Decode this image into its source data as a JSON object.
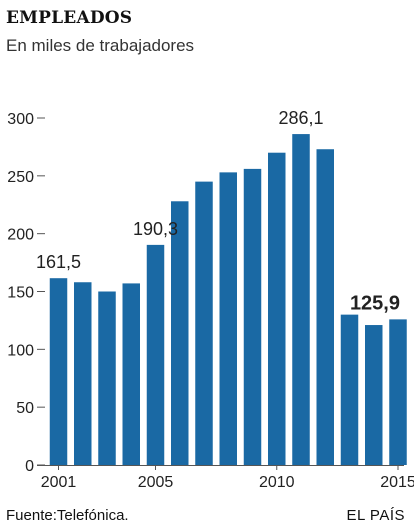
{
  "chart_data": {
    "type": "bar",
    "title": "EMPLEADOS",
    "subtitle": "En miles de trabajadores",
    "categories": [
      "2001",
      "2002",
      "2003",
      "2004",
      "2005",
      "2006",
      "2007",
      "2008",
      "2009",
      "2010",
      "2011",
      "2012",
      "2013",
      "2014",
      "2015"
    ],
    "values": [
      161.5,
      158,
      150,
      157,
      190.3,
      228,
      245,
      253,
      256,
      270,
      286.1,
      273,
      130,
      121,
      125.9
    ],
    "x_tick_labels": [
      {
        "index": 0,
        "text": "2001"
      },
      {
        "index": 4,
        "text": "2005"
      },
      {
        "index": 9,
        "text": "2010"
      },
      {
        "index": 14,
        "text": "2015"
      }
    ],
    "y_ticks": [
      {
        "value": 0,
        "text": "0"
      },
      {
        "value": 50,
        "text": "50"
      },
      {
        "value": 100,
        "text": "100"
      },
      {
        "value": 150,
        "text": "150"
      },
      {
        "value": 200,
        "text": "200"
      },
      {
        "value": 250,
        "text": "250"
      },
      {
        "value": 300,
        "text": "300"
      }
    ],
    "data_labels": [
      {
        "index": 0,
        "text": "161,5",
        "bold": false
      },
      {
        "index": 4,
        "text": "190,3",
        "bold": false
      },
      {
        "index": 10,
        "text": "286,1",
        "bold": false
      },
      {
        "index": 14,
        "text": "125,9",
        "bold": true
      }
    ],
    "ylim": [
      0,
      300
    ],
    "grid": false,
    "bar_color": "#1a69a4",
    "source": "Fuente:Telefónica.",
    "brand": "EL PAÍS"
  }
}
